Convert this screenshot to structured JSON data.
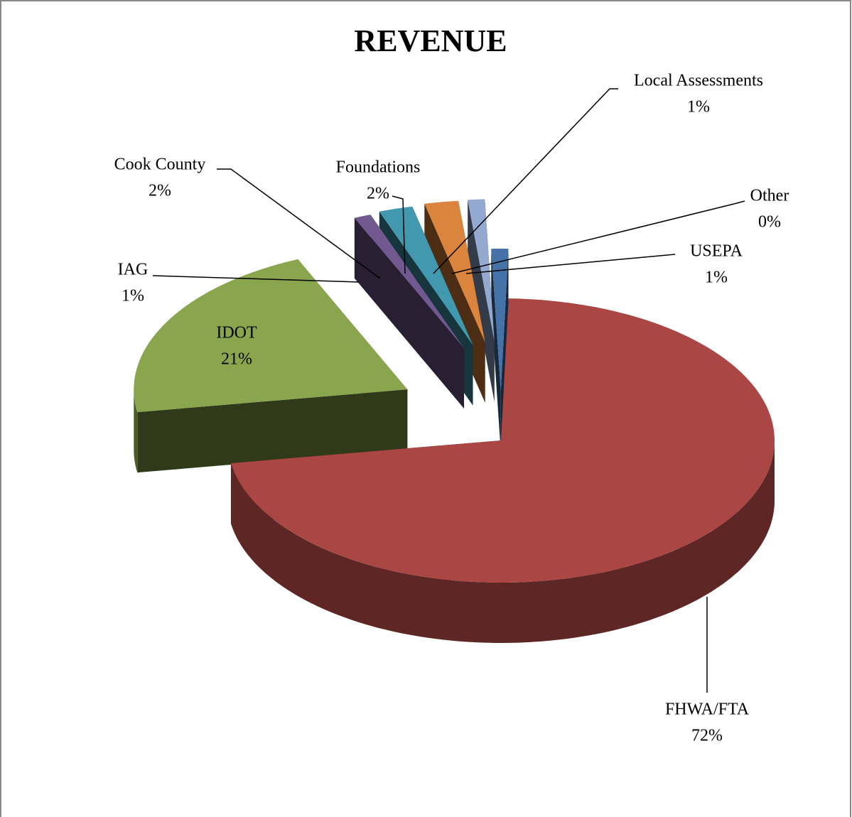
{
  "chart_data": {
    "type": "pie3d",
    "title": "REVENUE",
    "categories": [
      "USEPA",
      "FHWA/FTA",
      "IDOT",
      "IAG",
      "Cook County",
      "Foundations",
      "Local Assessments",
      "Other"
    ],
    "values": [
      1,
      72,
      21,
      1,
      2,
      2,
      1,
      0
    ],
    "value_labels": [
      "1%",
      "72%",
      "21%",
      "1%",
      "2%",
      "2%",
      "1%",
      "0%"
    ],
    "colors": [
      "#4572a7",
      "#aa4643",
      "#89a54e",
      "#71588f",
      "#4198af",
      "#db843d",
      "#93a9cf",
      "#d19392"
    ]
  }
}
